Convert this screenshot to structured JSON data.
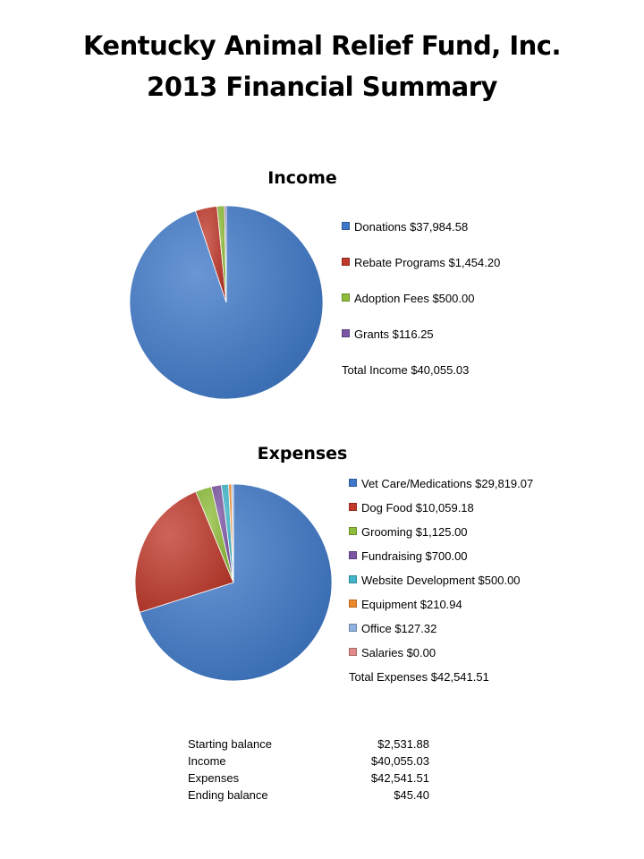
{
  "title_line1": "Kentucky Animal Relief Fund, Inc.",
  "title_line2": "2013 Financial Summary",
  "chart_data": [
    {
      "type": "pie",
      "title": "Income",
      "categories": [
        "Donations",
        "Rebate Programs",
        "Adoption Fees",
        "Grants"
      ],
      "labels": [
        "Donations $37,984.58",
        "Rebate Programs $1,454.20",
        "Adoption Fees $500.00",
        "Grants $116.25"
      ],
      "values": [
        37984.58,
        1454.2,
        500.0,
        116.25
      ],
      "colors": [
        "#3f78c8",
        "#c0392b",
        "#8ebd3a",
        "#7b54a3"
      ],
      "total_label": "Total Income $40,055.03",
      "legend": "right"
    },
    {
      "type": "pie",
      "title": "Expenses",
      "categories": [
        "Vet Care/Medications",
        "Dog Food",
        "Grooming",
        "Fundraising",
        "Website Development",
        "Equipment",
        "Office",
        "Salaries"
      ],
      "labels": [
        "Vet Care/Medications $29,819.07",
        "Dog Food $10,059.18",
        "Grooming $1,125.00",
        "Fundraising $700.00",
        "Website Development $500.00",
        "Equipment $210.94",
        "Office $127.32",
        "Salaries $0.00"
      ],
      "values": [
        29819.07,
        10059.18,
        1125.0,
        700.0,
        500.0,
        210.94,
        127.32,
        0.0
      ],
      "colors": [
        "#3f78c8",
        "#c0392b",
        "#8ebd3a",
        "#7b54a3",
        "#3fb6c9",
        "#ee8a2c",
        "#8fb2e0",
        "#e08a8a"
      ],
      "total_label": "Total Expenses $42,541.51",
      "legend": "right"
    }
  ],
  "summary": [
    {
      "label": "Starting balance",
      "value": "$2,531.88"
    },
    {
      "label": "Income",
      "value": "$40,055.03"
    },
    {
      "label": "Expenses",
      "value": "$42,541.51"
    },
    {
      "label": "Ending balance",
      "value": "$45.40"
    }
  ]
}
